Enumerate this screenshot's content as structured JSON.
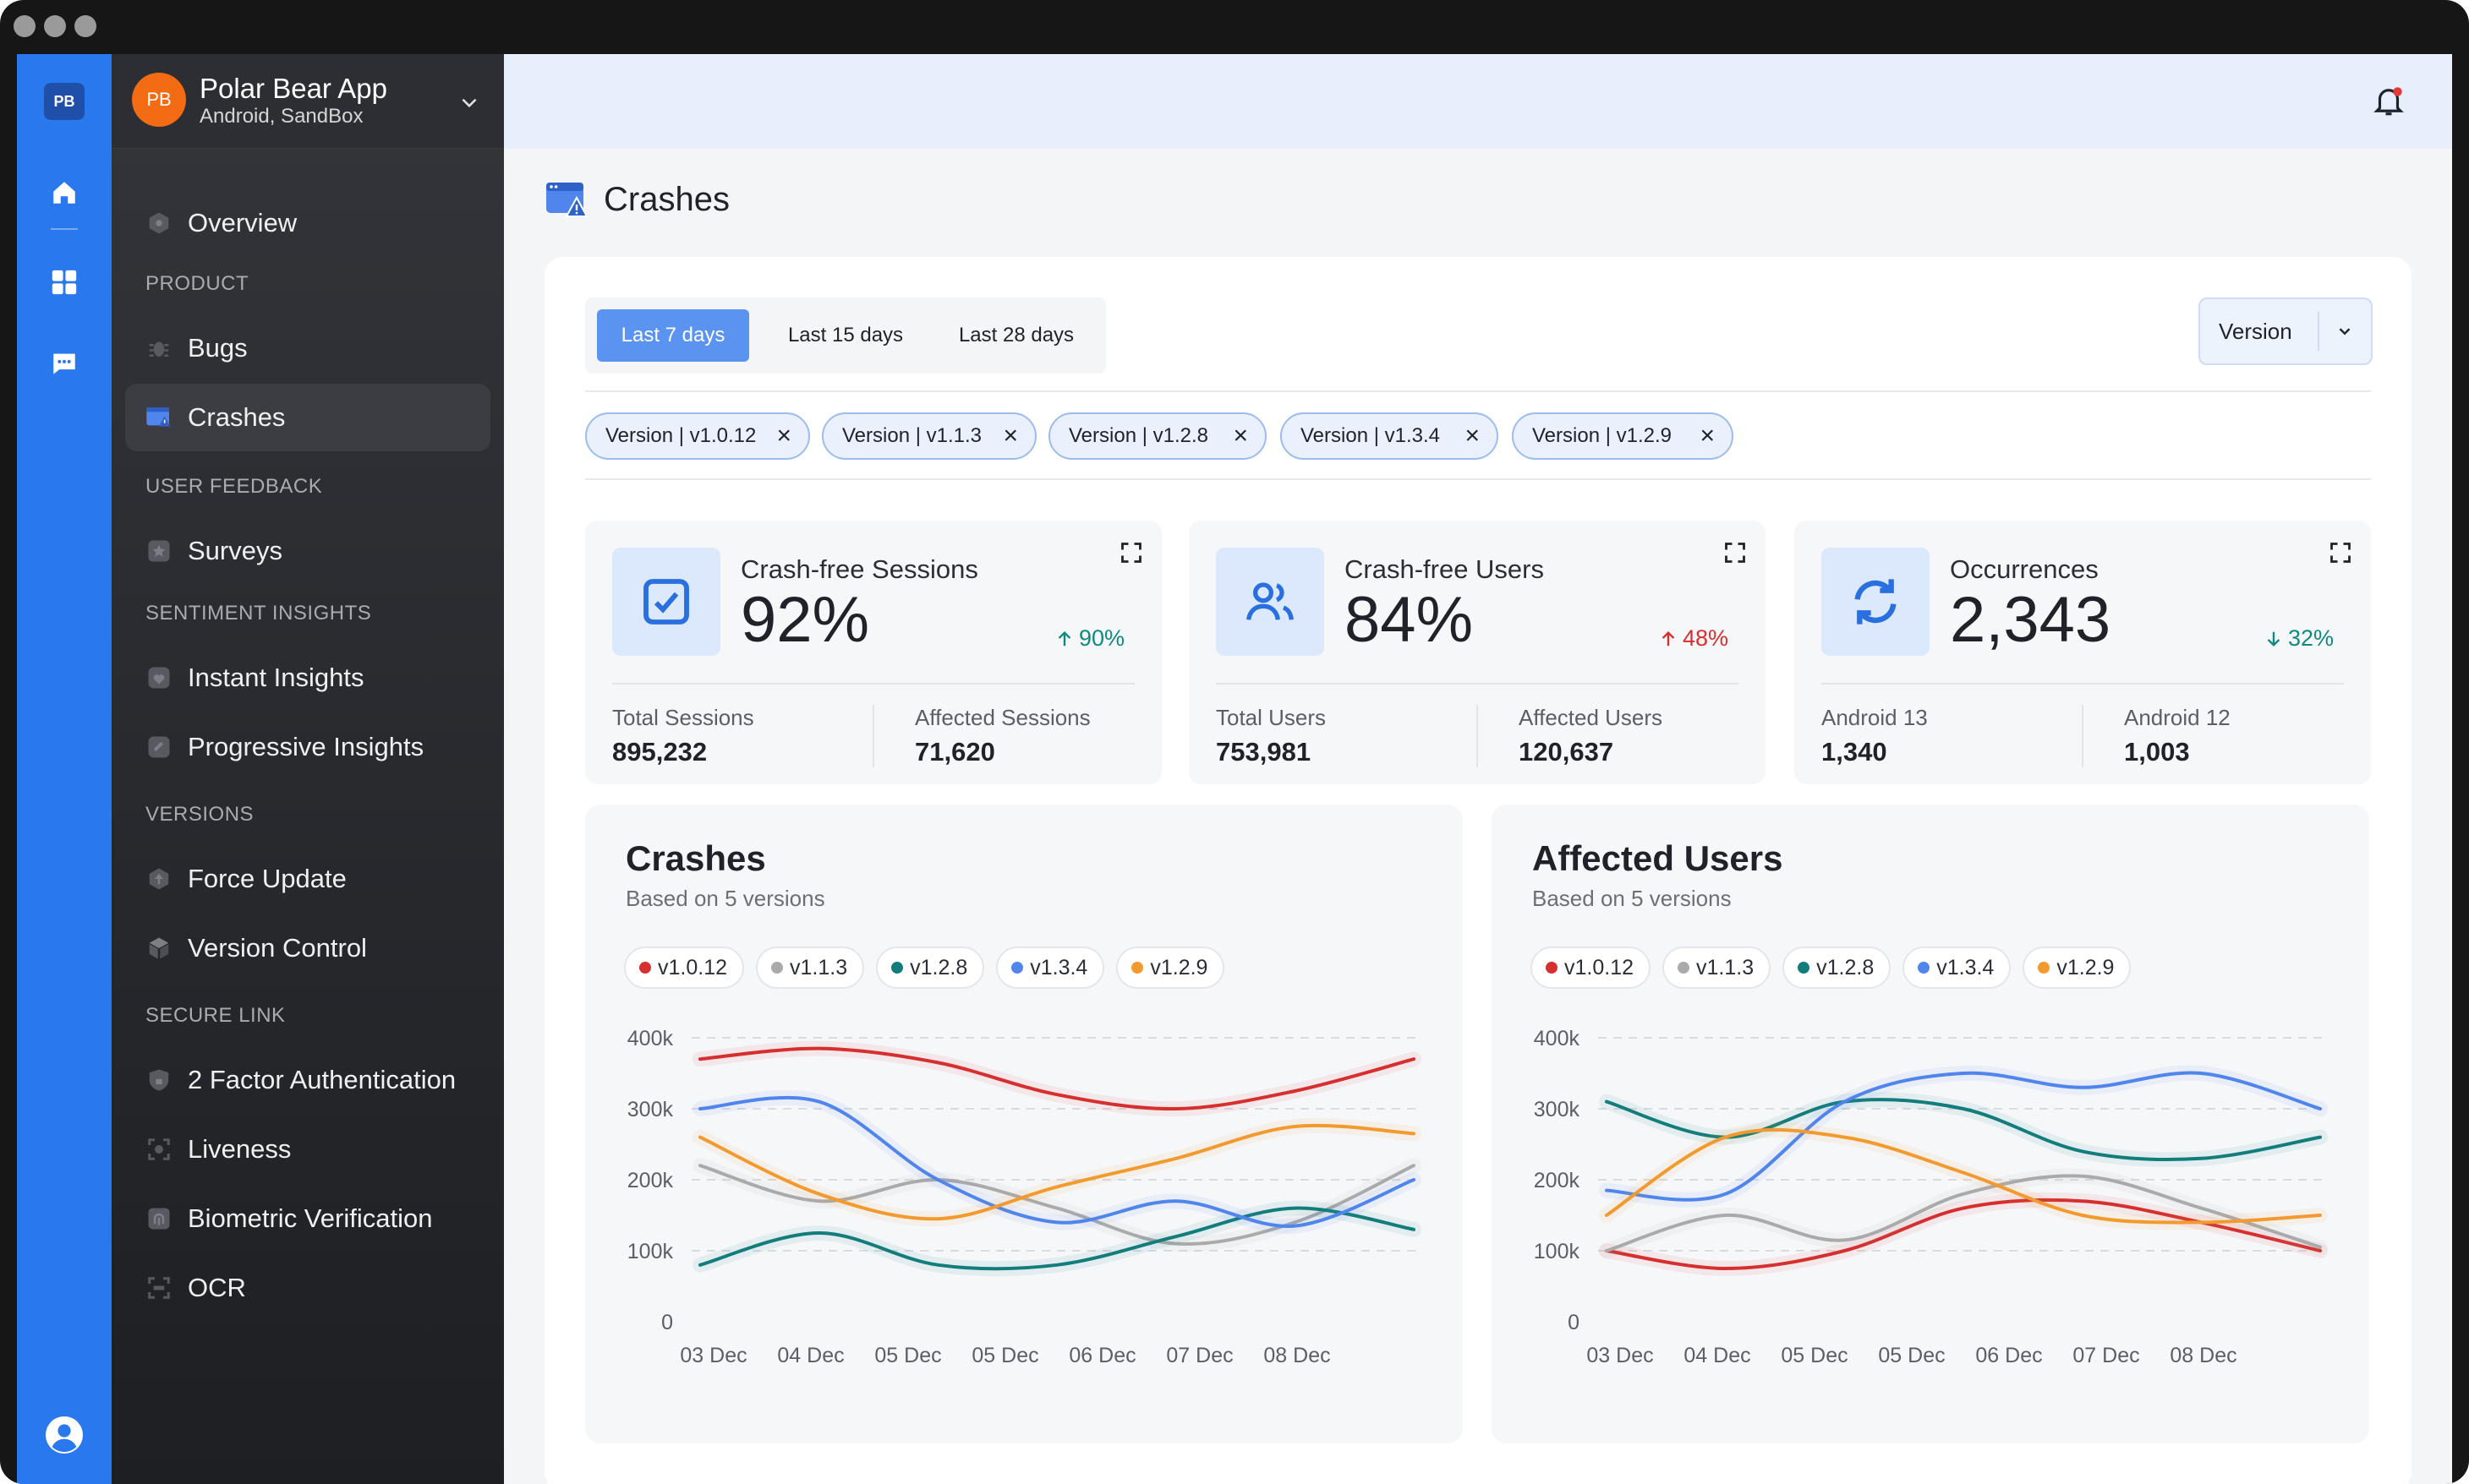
{
  "app": {
    "rail_badge": "PB",
    "avatar": "PB",
    "name": "Polar Bear App",
    "subtitle": "Android, SandBox"
  },
  "icons": [
    "home-icon",
    "grid-icon",
    "chat-icon",
    "profile-icon",
    "bell-icon",
    "chevron-down-icon"
  ],
  "sidebar": {
    "items": [
      {
        "label": "Overview"
      },
      {
        "section": "PRODUCT"
      },
      {
        "label": "Bugs"
      },
      {
        "label": "Crashes",
        "active": true
      },
      {
        "section": "USER FEEDBACK"
      },
      {
        "label": "Surveys"
      },
      {
        "section": "SENTIMENT INSIGHTS"
      },
      {
        "label": "Instant Insights"
      },
      {
        "label": "Progressive Insights"
      },
      {
        "section": "VERSIONS"
      },
      {
        "label": "Force Update"
      },
      {
        "label": "Version Control"
      },
      {
        "section": "SECURE LINK"
      },
      {
        "label": "2 Factor Authentication"
      },
      {
        "label": "Liveness"
      },
      {
        "label": "Biometric Verification"
      },
      {
        "label": "OCR"
      }
    ]
  },
  "page": {
    "title": "Crashes"
  },
  "filters": {
    "ranges": [
      "Last 7 days",
      "Last 15 days",
      "Last 28 days"
    ],
    "selected_range": "Last 7 days",
    "version_select": "Version",
    "chips": [
      "Version | v1.0.12",
      "Version | v1.1.3",
      "Version | v1.2.8",
      "Version | v1.3.4",
      "Version | v1.2.9"
    ]
  },
  "stats": [
    {
      "title": "Crash-free Sessions",
      "value": "92%",
      "change": "90%",
      "direction": "up",
      "change_color": "#0f8a7e",
      "sub1_label": "Total Sessions",
      "sub1_value": "895,232",
      "sub2_label": "Affected Sessions",
      "sub2_value": "71,620"
    },
    {
      "title": "Crash-free Users",
      "value": "84%",
      "change": "48%",
      "direction": "up",
      "change_color": "#d62f2f",
      "sub1_label": "Total Users",
      "sub1_value": "753,981",
      "sub2_label": "Affected Users",
      "sub2_value": "120,637"
    },
    {
      "title": "Occurrences",
      "value": "2,343",
      "change": "32%",
      "direction": "down",
      "change_color": "#0f8a7e",
      "sub1_label": "Android 13",
      "sub1_value": "1,340",
      "sub2_label": "Android 12",
      "sub2_value": "1,003"
    }
  ],
  "chart_data": [
    {
      "type": "line",
      "title": "Crashes",
      "subtitle": "Based on 5 versions",
      "categories": [
        "03 Dec",
        "04 Dec",
        "05 Dec",
        "05 Dec",
        "06 Dec",
        "07 Dec",
        "08 Dec"
      ],
      "yticks": [
        "0",
        "100k",
        "200k",
        "300k",
        "400k"
      ],
      "ylim": [
        0,
        400000
      ],
      "grid": true,
      "series": [
        {
          "name": "v1.0.12",
          "color": "#d62f2f",
          "values": [
            370000,
            385000,
            365000,
            320000,
            300000,
            325000,
            370000
          ]
        },
        {
          "name": "v1.1.3",
          "color": "#aaaaaa",
          "values": [
            220000,
            170000,
            200000,
            160000,
            110000,
            140000,
            220000
          ]
        },
        {
          "name": "v1.2.8",
          "color": "#137d7c",
          "values": [
            80000,
            125000,
            80000,
            80000,
            120000,
            160000,
            130000
          ]
        },
        {
          "name": "v1.3.4",
          "color": "#4f85ec",
          "values": [
            300000,
            310000,
            200000,
            140000,
            170000,
            135000,
            200000
          ]
        },
        {
          "name": "v1.2.9",
          "color": "#f39a2e",
          "values": [
            260000,
            180000,
            145000,
            190000,
            230000,
            275000,
            265000
          ]
        }
      ]
    },
    {
      "type": "line",
      "title": "Affected Users",
      "subtitle": "Based on 5 versions",
      "categories": [
        "03 Dec",
        "04 Dec",
        "05 Dec",
        "05 Dec",
        "06 Dec",
        "07 Dec",
        "08 Dec"
      ],
      "yticks": [
        "0",
        "100k",
        "200k",
        "300k",
        "400k"
      ],
      "ylim": [
        0,
        400000
      ],
      "grid": true,
      "series": [
        {
          "name": "v1.0.12",
          "color": "#d62f2f",
          "values": [
            100000,
            75000,
            100000,
            160000,
            170000,
            140000,
            100000
          ]
        },
        {
          "name": "v1.1.3",
          "color": "#aaaaaa",
          "values": [
            100000,
            150000,
            115000,
            180000,
            205000,
            160000,
            105000
          ]
        },
        {
          "name": "v1.2.8",
          "color": "#137d7c",
          "values": [
            310000,
            260000,
            310000,
            300000,
            240000,
            230000,
            260000
          ]
        },
        {
          "name": "v1.3.4",
          "color": "#4f85ec",
          "values": [
            185000,
            180000,
            310000,
            350000,
            330000,
            350000,
            300000
          ]
        },
        {
          "name": "v1.2.9",
          "color": "#f39a2e",
          "values": [
            150000,
            260000,
            260000,
            210000,
            150000,
            140000,
            150000
          ]
        }
      ]
    }
  ]
}
